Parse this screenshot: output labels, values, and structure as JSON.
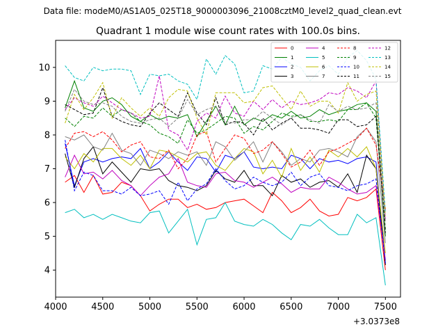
{
  "header": {
    "data_file": "Data file: modeM0/AS1A05_025T18_9000003096_21008cztM0_level2_quad_clean.evt"
  },
  "chart_data": {
    "type": "line",
    "title": "Quadrant 1 module wise count rates with 100.0s bins.",
    "xlabel": "",
    "ylabel": "",
    "x_offset_label": "+3.0373e8",
    "xlim": [
      4000,
      7660
    ],
    "ylim": [
      3.2,
      10.8
    ],
    "xticks": [
      4000,
      4500,
      5000,
      5500,
      6000,
      6500,
      7000,
      7500
    ],
    "yticks": [
      4,
      5,
      6,
      7,
      8,
      9,
      10
    ],
    "grid": false,
    "legend_position": "top-right",
    "x": [
      4100,
      4200,
      4300,
      4400,
      4500,
      4600,
      4700,
      4800,
      4900,
      5000,
      5100,
      5200,
      5300,
      5400,
      5500,
      5600,
      5700,
      5800,
      5900,
      6000,
      6100,
      6200,
      6300,
      6400,
      6500,
      6600,
      6700,
      6800,
      6900,
      7000,
      7100,
      7200,
      7300,
      7400,
      7500
    ],
    "series": [
      {
        "name": "0",
        "color": "#ff0000",
        "dash": "solid",
        "values": [
          6.6,
          6.8,
          6.3,
          6.8,
          6.25,
          6.3,
          6.6,
          6.5,
          6.2,
          5.75,
          5.95,
          6.1,
          6.1,
          5.85,
          5.95,
          5.8,
          5.85,
          6.0,
          6.05,
          6.1,
          5.9,
          5.7,
          6.3,
          6.05,
          5.7,
          5.85,
          6.1,
          5.75,
          5.6,
          5.65,
          6.15,
          6.05,
          6.15,
          6.4,
          4.0
        ]
      },
      {
        "name": "1",
        "color": "#008000",
        "dash": "solid",
        "values": [
          8.8,
          9.6,
          8.8,
          8.7,
          9.0,
          9.1,
          8.9,
          8.55,
          8.4,
          8.6,
          8.45,
          8.55,
          8.5,
          8.6,
          7.95,
          8.4,
          8.85,
          8.3,
          8.85,
          8.3,
          8.5,
          8.4,
          8.6,
          8.5,
          8.7,
          8.5,
          8.55,
          8.75,
          8.6,
          8.7,
          8.75,
          8.9,
          8.95,
          8.7,
          5.0
        ]
      },
      {
        "name": "2",
        "color": "#0000ff",
        "dash": "solid",
        "values": [
          7.75,
          6.5,
          7.2,
          7.3,
          7.2,
          7.3,
          7.35,
          7.3,
          7.6,
          7.0,
          7.2,
          7.5,
          7.2,
          6.95,
          7.35,
          7.3,
          6.9,
          7.4,
          7.3,
          7.5,
          7.05,
          7.0,
          7.05,
          7.0,
          7.4,
          7.3,
          7.0,
          7.3,
          7.2,
          7.25,
          7.15,
          7.3,
          7.35,
          7.2,
          4.2
        ]
      },
      {
        "name": "3",
        "color": "#000000",
        "dash": "solid",
        "values": [
          7.45,
          6.45,
          7.3,
          7.65,
          6.85,
          7.2,
          6.9,
          6.6,
          7.0,
          6.95,
          7.0,
          6.65,
          6.5,
          6.45,
          6.35,
          6.5,
          6.95,
          6.7,
          6.6,
          6.95,
          6.5,
          6.5,
          6.2,
          6.8,
          6.6,
          6.7,
          6.45,
          6.6,
          6.65,
          6.45,
          6.85,
          6.3,
          7.4,
          7.0,
          4.15
        ]
      },
      {
        "name": "4",
        "color": "#bf00bf",
        "dash": "solid",
        "values": [
          6.75,
          7.4,
          6.85,
          6.9,
          6.7,
          6.95,
          6.65,
          6.5,
          6.2,
          6.5,
          6.75,
          6.85,
          7.3,
          6.6,
          6.5,
          6.45,
          6.85,
          6.9,
          6.65,
          6.6,
          6.45,
          6.6,
          6.75,
          6.55,
          6.3,
          6.45,
          6.4,
          6.4,
          6.75,
          6.6,
          6.4,
          6.25,
          6.3,
          6.5,
          4.3
        ]
      },
      {
        "name": "5",
        "color": "#00bfbf",
        "dash": "solid",
        "values": [
          5.7,
          5.8,
          5.55,
          5.65,
          5.5,
          5.65,
          5.55,
          5.45,
          5.4,
          5.7,
          5.75,
          5.1,
          5.45,
          5.8,
          4.75,
          5.5,
          5.55,
          6.0,
          5.45,
          5.35,
          5.3,
          5.5,
          5.35,
          5.1,
          4.9,
          5.35,
          5.3,
          5.5,
          5.25,
          5.05,
          5.05,
          5.65,
          5.4,
          5.55,
          3.55
        ]
      },
      {
        "name": "6",
        "color": "#bfbf00",
        "dash": "solid",
        "values": [
          7.35,
          7.0,
          7.45,
          7.2,
          7.6,
          7.6,
          7.3,
          7.1,
          7.4,
          7.0,
          7.55,
          7.5,
          7.35,
          7.2,
          7.45,
          7.5,
          7.1,
          6.95,
          7.3,
          7.6,
          7.5,
          6.85,
          7.25,
          6.75,
          7.6,
          6.95,
          7.35,
          6.9,
          7.55,
          7.35,
          7.6,
          7.35,
          7.65,
          7.0,
          4.5
        ]
      },
      {
        "name": "7",
        "color": "#808080",
        "dash": "solid",
        "values": [
          7.95,
          7.85,
          8.0,
          7.65,
          7.55,
          8.05,
          7.55,
          7.45,
          7.1,
          7.55,
          7.45,
          7.3,
          7.5,
          7.4,
          7.5,
          7.1,
          7.8,
          7.65,
          7.25,
          7.5,
          7.8,
          7.2,
          7.8,
          7.5,
          7.1,
          7.3,
          7.2,
          7.55,
          7.6,
          7.5,
          7.35,
          7.95,
          8.2,
          7.8,
          4.8
        ]
      },
      {
        "name": "8",
        "color": "#ff0000",
        "dash": "dashed",
        "values": [
          7.6,
          8.05,
          8.1,
          7.95,
          8.1,
          7.85,
          7.5,
          7.7,
          7.8,
          7.35,
          7.3,
          7.55,
          7.0,
          7.3,
          8.0,
          8.1,
          7.2,
          7.6,
          8.0,
          7.9,
          7.45,
          7.55,
          7.8,
          7.45,
          7.05,
          7.2,
          7.55,
          7.1,
          7.5,
          7.6,
          7.75,
          7.9,
          8.2,
          7.7,
          5.8
        ]
      },
      {
        "name": "9",
        "color": "#008000",
        "dash": "dashed",
        "values": [
          8.5,
          8.25,
          8.55,
          8.5,
          8.8,
          8.55,
          8.75,
          8.65,
          8.4,
          8.3,
          8.05,
          7.95,
          7.75,
          8.45,
          8.05,
          8.15,
          8.35,
          8.55,
          8.5,
          8.05,
          8.25,
          8.15,
          8.4,
          8.65,
          8.55,
          8.6,
          8.4,
          8.4,
          8.45,
          8.4,
          8.75,
          8.75,
          8.95,
          8.5,
          5.2
        ]
      },
      {
        "name": "10",
        "color": "#0000ff",
        "dash": "dashed",
        "values": [
          7.85,
          6.35,
          6.9,
          6.8,
          6.35,
          6.35,
          6.25,
          6.45,
          6.2,
          6.25,
          6.35,
          5.95,
          6.6,
          6.05,
          6.4,
          6.55,
          7.0,
          6.65,
          6.4,
          6.5,
          6.75,
          6.6,
          6.5,
          6.6,
          6.9,
          6.5,
          6.75,
          6.85,
          6.5,
          6.45,
          6.35,
          6.5,
          6.55,
          6.7,
          4.2
        ]
      },
      {
        "name": "11",
        "color": "#000000",
        "dash": "dashed",
        "values": [
          8.9,
          8.75,
          8.6,
          8.65,
          9.4,
          8.55,
          8.4,
          8.3,
          8.25,
          8.65,
          8.95,
          8.75,
          8.55,
          9.25,
          8.65,
          8.3,
          9.1,
          8.3,
          8.4,
          8.35,
          8.0,
          8.5,
          8.15,
          8.35,
          8.5,
          8.2,
          8.2,
          8.15,
          8.05,
          8.45,
          8.45,
          8.25,
          8.3,
          8.55,
          5.1
        ]
      },
      {
        "name": "12",
        "color": "#bf00bf",
        "dash": "dashed",
        "values": [
          8.75,
          9.1,
          8.95,
          8.85,
          9.15,
          8.95,
          8.75,
          8.65,
          8.5,
          8.55,
          9.75,
          8.15,
          8.0,
          7.55,
          8.4,
          8.65,
          8.5,
          9.15,
          8.65,
          8.55,
          9.0,
          8.75,
          9.05,
          8.8,
          9.0,
          8.9,
          8.95,
          9.05,
          9.25,
          9.2,
          9.4,
          9.3,
          9.1,
          9.6,
          5.5
        ]
      },
      {
        "name": "13",
        "color": "#00bfbf",
        "dash": "dashed",
        "values": [
          10.05,
          9.7,
          9.6,
          10.0,
          9.9,
          9.95,
          9.95,
          9.9,
          9.2,
          9.8,
          9.75,
          9.8,
          9.6,
          9.5,
          9.05,
          10.25,
          9.8,
          10.35,
          10.1,
          9.25,
          9.3,
          10.05,
          9.95,
          10.3,
          10.1,
          10.0,
          9.6,
          9.9,
          10.05,
          9.8,
          10.3,
          10.5,
          10.2,
          9.65,
          5.7
        ]
      },
      {
        "name": "14",
        "color": "#bfbf00",
        "dash": "dashed",
        "values": [
          8.35,
          9.2,
          8.75,
          9.1,
          9.55,
          8.5,
          9.1,
          8.8,
          8.55,
          8.8,
          8.55,
          9.1,
          9.35,
          9.3,
          8.5,
          8.0,
          9.25,
          9.25,
          9.25,
          8.95,
          9.0,
          9.4,
          9.45,
          9.1,
          8.75,
          9.3,
          8.85,
          9.0,
          9.0,
          8.65,
          9.55,
          9.0,
          9.2,
          9.3,
          5.6
        ]
      },
      {
        "name": "15",
        "color": "#808080",
        "dash": "dashed",
        "values": [
          8.7,
          9.35,
          9.0,
          8.9,
          8.95,
          8.85,
          8.55,
          8.4,
          8.35,
          8.45,
          8.5,
          8.25,
          8.5,
          9.05,
          8.6,
          8.75,
          8.85,
          8.4,
          8.35,
          8.45,
          8.45,
          8.7,
          8.5,
          8.3,
          8.5,
          8.6,
          8.45,
          8.35,
          8.9,
          8.7,
          8.85,
          8.75,
          8.8,
          8.95,
          5.4
        ]
      }
    ]
  }
}
